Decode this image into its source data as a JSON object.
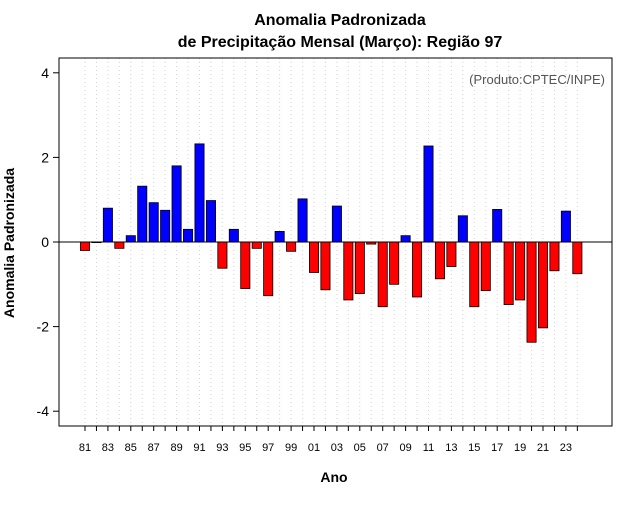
{
  "chart_data": {
    "type": "bar",
    "title_line1": "Anomalia Padronizada",
    "title_line2": "de Precipitação Mensal (Março): Região 97",
    "credit": "(Produto:CPTEC/INPE)",
    "xlabel": "Ano",
    "ylabel": "Anomalia Padronizada",
    "ylim": [
      -4.35,
      4.35
    ],
    "yticks": [
      -4,
      -2,
      0,
      2,
      4
    ],
    "ytick_labels": [
      "-4",
      "-2",
      "0",
      "2",
      "4"
    ],
    "categories": [
      "1981",
      "1982",
      "1983",
      "1984",
      "1985",
      "1986",
      "1987",
      "1988",
      "1989",
      "1990",
      "1991",
      "1992",
      "1993",
      "1994",
      "1995",
      "1996",
      "1997",
      "1998",
      "1999",
      "2000",
      "2001",
      "2002",
      "2003",
      "2004",
      "2005",
      "2006",
      "2007",
      "2008",
      "2009",
      "2010",
      "2011",
      "2012",
      "2013",
      "2014",
      "2015",
      "2016",
      "2017",
      "2018",
      "2019",
      "2020",
      "2021",
      "2022",
      "2023",
      "2024"
    ],
    "xtick_labels": [
      "81",
      "83",
      "85",
      "87",
      "89",
      "91",
      "93",
      "95",
      "97",
      "99",
      "01",
      "03",
      "05",
      "07",
      "09",
      "11",
      "13",
      "15",
      "17",
      "19",
      "21",
      "23"
    ],
    "values": [
      -0.2,
      0.0,
      0.8,
      -0.15,
      0.15,
      1.32,
      0.93,
      0.75,
      1.8,
      0.3,
      2.32,
      0.98,
      -0.62,
      0.3,
      -1.1,
      -0.15,
      -1.27,
      0.25,
      -0.22,
      1.02,
      -0.72,
      -1.13,
      0.85,
      -1.37,
      -1.22,
      -0.05,
      -1.53,
      -1.0,
      0.15,
      -1.3,
      2.27,
      -0.87,
      -0.58,
      0.62,
      -1.53,
      -1.15,
      0.77,
      -1.48,
      -1.37,
      -2.37,
      -2.03,
      -0.68,
      0.73,
      -0.75
    ],
    "positive_color": "#0000ff",
    "negative_color": "#ff0000",
    "grid": true
  }
}
